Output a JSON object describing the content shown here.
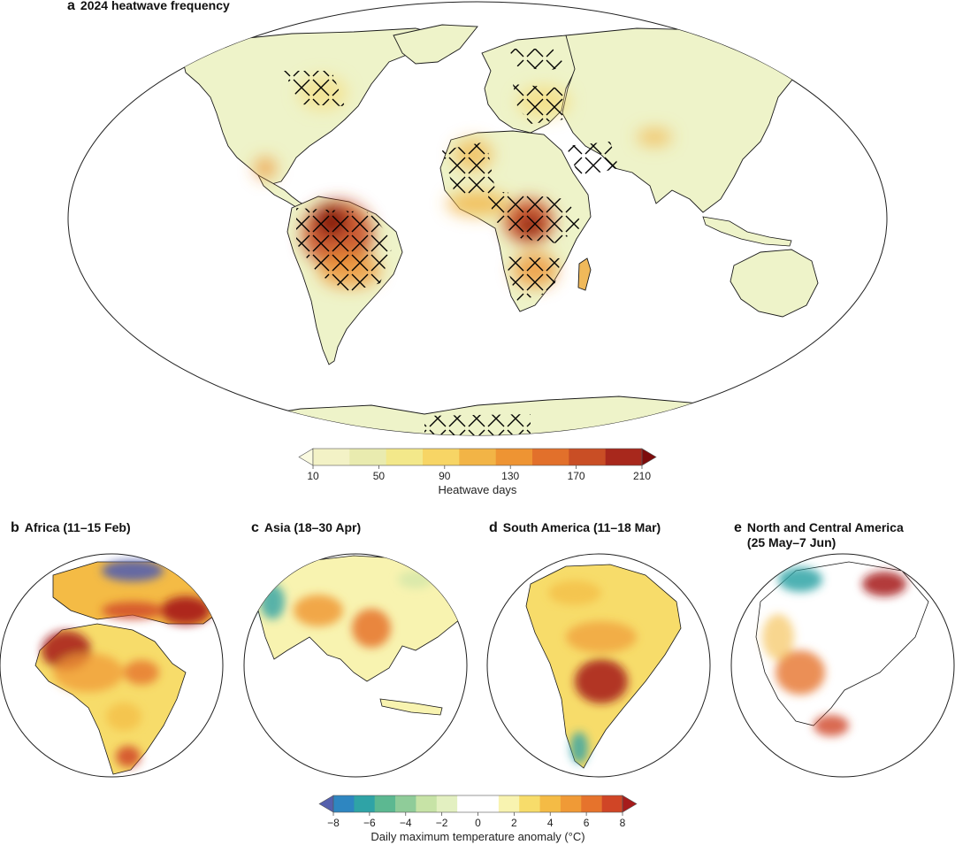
{
  "panels": {
    "a": {
      "letter": "a",
      "title": "2024 heatwave frequency"
    },
    "b": {
      "letter": "b",
      "title": "Africa (11–15 Feb)"
    },
    "c": {
      "letter": "c",
      "title": "Asia (18–30 Apr)"
    },
    "d": {
      "letter": "d",
      "title": "South America (11–18 Mar)"
    },
    "e": {
      "letter": "e",
      "title": "North and Central America\n(25 May–7 Jun)"
    }
  },
  "heatwave_colorbar": {
    "title": "Heatwave days",
    "tick_labels": [
      "10",
      "50",
      "90",
      "130",
      "170",
      "210"
    ],
    "colors": [
      "#fafae0",
      "#f3f2c6",
      "#e9ebaf",
      "#f3e88a",
      "#f7d565",
      "#f2b446",
      "#ee9433",
      "#e2702b",
      "#c94e25",
      "#a8281c",
      "#7d0c0c"
    ]
  },
  "anomaly_colorbar": {
    "title": "Daily maximum temperature anomaly (°C)",
    "tick_labels": [
      "−8",
      "−6",
      "−4",
      "−2",
      "0",
      "2",
      "4",
      "6",
      "8"
    ],
    "colors": [
      "#5560ad",
      "#2e86c1",
      "#2fa3a6",
      "#5cb891",
      "#8fcc99",
      "#c7e3a6",
      "#e3f0c1",
      "#ffffff",
      "#ffffff",
      "#f8f3b0",
      "#f7dc6a",
      "#f4bb45",
      "#f09a36",
      "#e6732c",
      "#d04526",
      "#a61b1b"
    ]
  },
  "colors": {
    "land_base": "#eef3c9",
    "ocean": "#ffffff",
    "coast": "#1a1a1a",
    "hatch": "#000000"
  }
}
